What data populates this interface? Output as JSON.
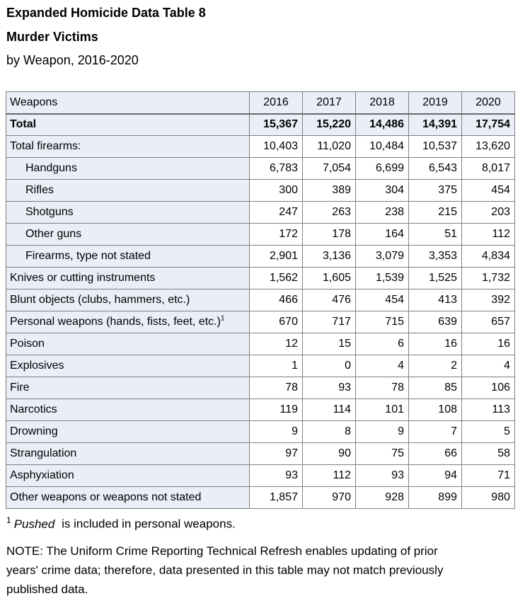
{
  "meta": {
    "shaded_bg_color": "#e9eef7",
    "border_color": "#7f7f7f",
    "text_color": "#000000"
  },
  "header_block": {
    "title_line1": "Expanded Homicide Data Table 8",
    "title_line2": "Murder Victims",
    "title_line3": "by Weapon, 2016-2020"
  },
  "table": {
    "columns": [
      "Weapons",
      "2016",
      "2017",
      "2018",
      "2019",
      "2020"
    ],
    "rows": [
      {
        "label": "Total",
        "sup": "",
        "indent": false,
        "bold": true,
        "shaded": true,
        "values": [
          "15,367",
          "15,220",
          "14,486",
          "14,391",
          "17,754"
        ]
      },
      {
        "label": "Total firearms:",
        "sup": "",
        "indent": false,
        "bold": false,
        "shaded": false,
        "values": [
          "10,403",
          "11,020",
          "10,484",
          "10,537",
          "13,620"
        ]
      },
      {
        "label": "Handguns",
        "sup": "",
        "indent": true,
        "bold": false,
        "shaded": false,
        "values": [
          "6,783",
          "7,054",
          "6,699",
          "6,543",
          "8,017"
        ]
      },
      {
        "label": "Rifles",
        "sup": "",
        "indent": true,
        "bold": false,
        "shaded": false,
        "values": [
          "300",
          "389",
          "304",
          "375",
          "454"
        ]
      },
      {
        "label": "Shotguns",
        "sup": "",
        "indent": true,
        "bold": false,
        "shaded": false,
        "values": [
          "247",
          "263",
          "238",
          "215",
          "203"
        ]
      },
      {
        "label": "Other guns",
        "sup": "",
        "indent": true,
        "bold": false,
        "shaded": false,
        "values": [
          "172",
          "178",
          "164",
          "51",
          "112"
        ]
      },
      {
        "label": "Firearms, type not stated",
        "sup": "",
        "indent": true,
        "bold": false,
        "shaded": false,
        "values": [
          "2,901",
          "3,136",
          "3,079",
          "3,353",
          "4,834"
        ]
      },
      {
        "label": "Knives or cutting instruments",
        "sup": "",
        "indent": false,
        "bold": false,
        "shaded": false,
        "values": [
          "1,562",
          "1,605",
          "1,539",
          "1,525",
          "1,732"
        ]
      },
      {
        "label": "Blunt objects (clubs, hammers, etc.)",
        "sup": "",
        "indent": false,
        "bold": false,
        "shaded": false,
        "values": [
          "466",
          "476",
          "454",
          "413",
          "392"
        ]
      },
      {
        "label": "Personal weapons (hands, fists, feet, etc.)",
        "sup": "1",
        "indent": false,
        "bold": false,
        "shaded": false,
        "values": [
          "670",
          "717",
          "715",
          "639",
          "657"
        ]
      },
      {
        "label": "Poison",
        "sup": "",
        "indent": false,
        "bold": false,
        "shaded": false,
        "values": [
          "12",
          "15",
          "6",
          "16",
          "16"
        ]
      },
      {
        "label": "Explosives",
        "sup": "",
        "indent": false,
        "bold": false,
        "shaded": false,
        "values": [
          "1",
          "0",
          "4",
          "2",
          "4"
        ]
      },
      {
        "label": "Fire",
        "sup": "",
        "indent": false,
        "bold": false,
        "shaded": false,
        "values": [
          "78",
          "93",
          "78",
          "85",
          "106"
        ]
      },
      {
        "label": "Narcotics",
        "sup": "",
        "indent": false,
        "bold": false,
        "shaded": false,
        "values": [
          "119",
          "114",
          "101",
          "108",
          "113"
        ]
      },
      {
        "label": "Drowning",
        "sup": "",
        "indent": false,
        "bold": false,
        "shaded": false,
        "values": [
          "9",
          "8",
          "9",
          "7",
          "5"
        ]
      },
      {
        "label": "Strangulation",
        "sup": "",
        "indent": false,
        "bold": false,
        "shaded": false,
        "values": [
          "97",
          "90",
          "75",
          "66",
          "58"
        ]
      },
      {
        "label": "Asphyxiation",
        "sup": "",
        "indent": false,
        "bold": false,
        "shaded": false,
        "values": [
          "93",
          "112",
          "93",
          "94",
          "71"
        ]
      },
      {
        "label": "Other weapons or weapons not stated",
        "sup": "",
        "indent": false,
        "bold": false,
        "shaded": false,
        "values": [
          "1,857",
          "970",
          "928",
          "899",
          "980"
        ]
      }
    ]
  },
  "footnotes": {
    "footnote1_sup": "1",
    "footnote1_term": "Pushed",
    "footnote1_text": " is included in personal weapons.",
    "note_lines": [
      "NOTE: The Uniform Crime Reporting Technical Refresh enables updating of prior",
      "years' crime data; therefore, data presented in this table may not match previously",
      "published data."
    ]
  },
  "chart_data": {
    "type": "table",
    "title": "Expanded Homicide Data Table 8 — Murder Victims by Weapon, 2016-2020",
    "categories": [
      "2016",
      "2017",
      "2018",
      "2019",
      "2020"
    ],
    "series": [
      {
        "name": "Total",
        "values": [
          15367,
          15220,
          14486,
          14391,
          17754
        ]
      },
      {
        "name": "Total firearms:",
        "values": [
          10403,
          11020,
          10484,
          10537,
          13620
        ]
      },
      {
        "name": "Handguns",
        "values": [
          6783,
          7054,
          6699,
          6543,
          8017
        ]
      },
      {
        "name": "Rifles",
        "values": [
          300,
          389,
          304,
          375,
          454
        ]
      },
      {
        "name": "Shotguns",
        "values": [
          247,
          263,
          238,
          215,
          203
        ]
      },
      {
        "name": "Other guns",
        "values": [
          172,
          178,
          164,
          51,
          112
        ]
      },
      {
        "name": "Firearms, type not stated",
        "values": [
          2901,
          3136,
          3079,
          3353,
          4834
        ]
      },
      {
        "name": "Knives or cutting instruments",
        "values": [
          1562,
          1605,
          1539,
          1525,
          1732
        ]
      },
      {
        "name": "Blunt objects (clubs, hammers, etc.)",
        "values": [
          466,
          476,
          454,
          413,
          392
        ]
      },
      {
        "name": "Personal weapons (hands, fists, feet, etc.)",
        "values": [
          670,
          717,
          715,
          639,
          657
        ]
      },
      {
        "name": "Poison",
        "values": [
          12,
          15,
          6,
          16,
          16
        ]
      },
      {
        "name": "Explosives",
        "values": [
          1,
          0,
          4,
          2,
          4
        ]
      },
      {
        "name": "Fire",
        "values": [
          78,
          93,
          78,
          85,
          106
        ]
      },
      {
        "name": "Narcotics",
        "values": [
          119,
          114,
          101,
          108,
          113
        ]
      },
      {
        "name": "Drowning",
        "values": [
          9,
          8,
          9,
          7,
          5
        ]
      },
      {
        "name": "Strangulation",
        "values": [
          97,
          90,
          75,
          66,
          58
        ]
      },
      {
        "name": "Asphyxiation",
        "values": [
          93,
          112,
          93,
          94,
          71
        ]
      },
      {
        "name": "Other weapons or weapons not stated",
        "values": [
          1857,
          970,
          928,
          899,
          980
        ]
      }
    ]
  }
}
